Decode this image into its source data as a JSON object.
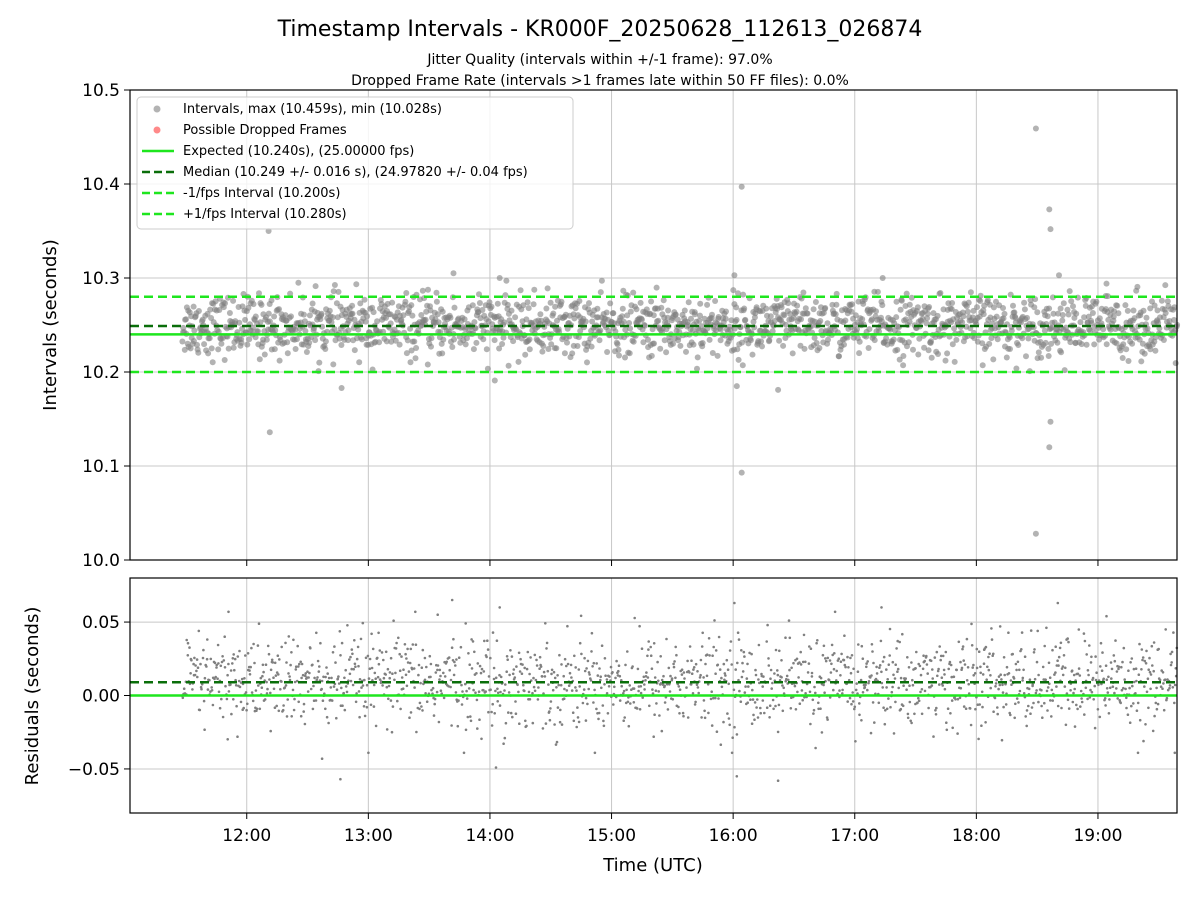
{
  "chart_data": {
    "type": "scatter",
    "title": "Timestamp Intervals - KR000F_20250628_112613_026874",
    "subtitle_lines": [
      "Jitter Quality (intervals within +/-1 frame): 97.0%",
      "Dropped Frame Rate (intervals >1 frames late within 50 FF files): 0.0%"
    ],
    "xlabel": "Time (UTC)",
    "x_range_hours": [
      11.04,
      19.65
    ],
    "x_ticks": [
      {
        "value": 12,
        "label": "12:00"
      },
      {
        "value": 13,
        "label": "13:00"
      },
      {
        "value": 14,
        "label": "14:00"
      },
      {
        "value": 15,
        "label": "15:00"
      },
      {
        "value": 16,
        "label": "16:00"
      },
      {
        "value": 17,
        "label": "17:00"
      },
      {
        "value": 18,
        "label": "18:00"
      },
      {
        "value": 19,
        "label": "19:00"
      }
    ],
    "grid": true,
    "legend_position": "top-left",
    "colors": {
      "points": "#808080",
      "dropped": "#ff3b3b",
      "expected": "#1ee61e",
      "median": "#0a6e0a",
      "fps_interval": "#1ee61e"
    },
    "top_panel": {
      "ylabel": "Intervals (seconds)",
      "ylim": [
        10.0,
        10.5
      ],
      "y_ticks": [
        "10.0",
        "10.1",
        "10.2",
        "10.3",
        "10.4",
        "10.5"
      ],
      "y_tick_values": [
        10.0,
        10.1,
        10.2,
        10.3,
        10.4,
        10.5
      ],
      "series": [
        {
          "name": "Intervals, max (10.459s), min (10.028s)",
          "kind": "scatter",
          "max": 10.459,
          "min": 10.028
        },
        {
          "name": "Possible Dropped Frames",
          "kind": "scatter",
          "values": []
        }
      ],
      "reference_lines": [
        {
          "name": "Expected (10.240s), (25.00000 fps)",
          "y": 10.24,
          "style": "solid"
        },
        {
          "name": "Median (10.249 +/- 0.016 s), (24.97820 +/- 0.04 fps)",
          "y": 10.249,
          "style": "dashed-dark"
        },
        {
          "name": "-1/fps Interval (10.200s)",
          "y": 10.2,
          "style": "dashed"
        },
        {
          "name": "+1/fps Interval (10.280s)",
          "y": 10.28,
          "style": "dashed"
        }
      ],
      "outliers": [
        {
          "x": 12.18,
          "y": 10.35
        },
        {
          "x": 12.19,
          "y": 10.136
        },
        {
          "x": 12.78,
          "y": 10.183
        },
        {
          "x": 13.7,
          "y": 10.305
        },
        {
          "x": 14.04,
          "y": 10.191
        },
        {
          "x": 14.08,
          "y": 10.3
        },
        {
          "x": 16.01,
          "y": 10.303
        },
        {
          "x": 16.03,
          "y": 10.185
        },
        {
          "x": 16.07,
          "y": 10.397
        },
        {
          "x": 16.07,
          "y": 10.093
        },
        {
          "x": 16.37,
          "y": 10.181
        },
        {
          "x": 17.23,
          "y": 10.3
        },
        {
          "x": 18.49,
          "y": 10.459
        },
        {
          "x": 18.49,
          "y": 10.028
        },
        {
          "x": 18.6,
          "y": 10.373
        },
        {
          "x": 18.61,
          "y": 10.352
        },
        {
          "x": 18.61,
          "y": 10.147
        },
        {
          "x": 18.6,
          "y": 10.12
        },
        {
          "x": 18.68,
          "y": 10.303
        },
        {
          "x": 19.07,
          "y": 10.294
        }
      ],
      "bulk_distribution": {
        "x_start": 11.47,
        "x_end": 19.65,
        "center": 10.249,
        "spread": 0.016,
        "count": 1700
      }
    },
    "bottom_panel": {
      "ylabel": "Residuals (seconds)",
      "ylim": [
        -0.08,
        0.08
      ],
      "y_ticks": [
        "−0.05",
        "0.00",
        "0.05"
      ],
      "y_tick_values": [
        -0.05,
        0.0,
        0.05
      ],
      "reference_lines": [
        {
          "y": 0.0,
          "style": "solid"
        },
        {
          "y": 0.009,
          "style": "dashed-dark"
        }
      ],
      "outliers": [
        {
          "x": 11.85,
          "y": 0.057
        },
        {
          "x": 12.62,
          "y": -0.043
        },
        {
          "x": 12.77,
          "y": -0.057
        },
        {
          "x": 13.57,
          "y": 0.055
        },
        {
          "x": 13.69,
          "y": 0.065
        },
        {
          "x": 14.05,
          "y": -0.049
        },
        {
          "x": 14.08,
          "y": 0.06
        },
        {
          "x": 16.01,
          "y": 0.063
        },
        {
          "x": 16.03,
          "y": -0.055
        },
        {
          "x": 16.37,
          "y": -0.058
        },
        {
          "x": 17.22,
          "y": 0.06
        },
        {
          "x": 18.67,
          "y": 0.063
        },
        {
          "x": 19.07,
          "y": 0.054
        }
      ],
      "bulk_distribution": {
        "x_start": 11.47,
        "x_end": 19.65,
        "center": 0.009,
        "spread": 0.016,
        "count": 1700
      }
    }
  }
}
